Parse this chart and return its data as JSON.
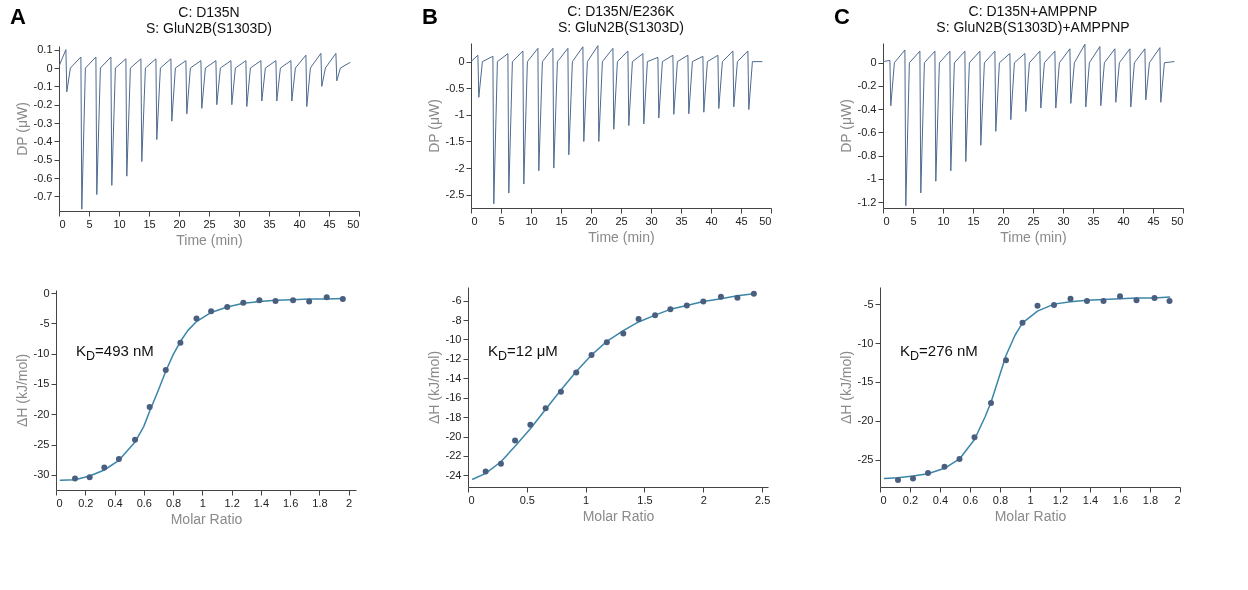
{
  "chart_data": [
    {
      "type": "line",
      "title": "C: D135N",
      "subtitle": "S: GluN2B(S1303D)",
      "annotations": [
        "A"
      ],
      "xlabel": "Time (min)",
      "ylabel": "DP (μW)",
      "xlim": [
        0,
        50
      ],
      "xticks": [
        0,
        5,
        10,
        15,
        20,
        25,
        30,
        35,
        40,
        45,
        50
      ],
      "ylim": [
        -0.78,
        0.12
      ],
      "yticks": [
        0.1,
        0,
        -0.1,
        -0.2,
        -0.3,
        -0.4,
        -0.5,
        -0.6,
        -0.7
      ],
      "grid": false,
      "x": [
        0,
        1.15,
        1.3,
        1.9,
        3.65,
        3.8,
        4.4,
        6.15,
        6.3,
        6.9,
        8.65,
        8.8,
        9.4,
        11.15,
        11.3,
        11.9,
        13.65,
        13.8,
        14.4,
        16.15,
        16.3,
        16.9,
        18.65,
        18.8,
        19.4,
        21.15,
        21.3,
        21.9,
        23.65,
        23.8,
        24.4,
        26.15,
        26.3,
        26.9,
        28.65,
        28.8,
        29.4,
        31.15,
        31.3,
        31.9,
        33.65,
        33.8,
        34.4,
        36.15,
        36.3,
        36.9,
        38.65,
        38.8,
        39.4,
        41.15,
        41.3,
        41.9,
        43.65,
        43.8,
        44.4,
        46.15,
        46.3,
        46.9,
        48.5
      ],
      "series": [
        {
          "color": "#4e6a8f",
          "values": [
            0.01,
            0.1,
            -0.13,
            0,
            0.06,
            -0.77,
            0,
            0.06,
            -0.69,
            0,
            0.06,
            -0.64,
            0,
            0.05,
            -0.59,
            0,
            0.05,
            -0.51,
            0,
            0.05,
            -0.39,
            0,
            0.05,
            -0.29,
            0,
            0.04,
            -0.25,
            0,
            0.04,
            -0.22,
            0,
            0.04,
            -0.2,
            0,
            0.04,
            -0.2,
            0,
            0.04,
            -0.21,
            0,
            0.04,
            -0.18,
            0,
            0.04,
            -0.18,
            0,
            0.04,
            -0.18,
            0,
            0.07,
            -0.21,
            0,
            0.08,
            -0.1,
            0,
            0.08,
            -0.07,
            0,
            0.03
          ]
        }
      ]
    },
    {
      "type": "line",
      "title": "C: D135N/E236K",
      "subtitle": "S: GluN2B(S1303D)",
      "annotations": [
        "B"
      ],
      "xlabel": "Time (min)",
      "ylabel": "DP (μW)",
      "xlim": [
        0,
        50
      ],
      "xticks": [
        0,
        5,
        10,
        15,
        20,
        25,
        30,
        35,
        40,
        45,
        50
      ],
      "ylim": [
        -2.75,
        0.35
      ],
      "yticks": [
        0,
        -0.5,
        -1,
        -1.5,
        -2,
        -2.5
      ],
      "grid": false,
      "x": [
        0,
        1.15,
        1.3,
        1.9,
        3.65,
        3.8,
        4.4,
        6.15,
        6.3,
        6.9,
        8.65,
        8.8,
        9.4,
        11.15,
        11.3,
        11.9,
        13.65,
        13.8,
        14.4,
        16.15,
        16.3,
        16.9,
        18.65,
        18.8,
        19.4,
        21.15,
        21.3,
        21.9,
        23.65,
        23.8,
        24.4,
        26.15,
        26.3,
        26.9,
        28.65,
        28.8,
        29.4,
        31.15,
        31.3,
        31.9,
        33.65,
        33.8,
        34.4,
        36.15,
        36.3,
        36.9,
        38.65,
        38.8,
        39.4,
        41.15,
        41.3,
        41.9,
        43.65,
        43.8,
        44.4,
        46.15,
        46.3,
        46.9,
        48.5
      ],
      "series": [
        {
          "color": "#4e6a8f",
          "values": [
            0,
            0.12,
            -0.67,
            0,
            0.1,
            -2.67,
            0,
            0.15,
            -2.47,
            0,
            0.2,
            -2.3,
            0,
            0.25,
            -2.05,
            0,
            0.25,
            -2.0,
            0,
            0.25,
            -1.75,
            0,
            0.28,
            -1.5,
            0,
            0.3,
            -1.5,
            0,
            0.25,
            -1.27,
            0,
            0.2,
            -1.2,
            0,
            0.15,
            -1.17,
            0,
            0.08,
            -1.06,
            0,
            0.12,
            -0.99,
            0,
            0.12,
            -0.98,
            0,
            0.1,
            -0.95,
            0,
            0.12,
            -0.88,
            0,
            0.2,
            -0.85,
            0,
            0.2,
            -0.9,
            0,
            0
          ]
        }
      ]
    },
    {
      "type": "line",
      "title": "C: D135N+AMPPNP",
      "subtitle": "S: GluN2B(S1303D)+AMPPNP",
      "annotations": [
        "C"
      ],
      "xlabel": "Time (min)",
      "ylabel": "DP (μW)",
      "xlim": [
        0,
        50
      ],
      "xticks": [
        0,
        5,
        10,
        15,
        20,
        25,
        30,
        35,
        40,
        45,
        50
      ],
      "ylim": [
        -1.25,
        0.17
      ],
      "yticks": [
        0,
        -0.2,
        -0.4,
        -0.6,
        -0.8,
        -1,
        -1.2
      ],
      "grid": false,
      "x": [
        0,
        1.15,
        1.3,
        1.9,
        3.65,
        3.8,
        4.4,
        6.15,
        6.3,
        6.9,
        8.65,
        8.8,
        9.4,
        11.15,
        11.3,
        11.9,
        13.65,
        13.8,
        14.4,
        16.15,
        16.3,
        16.9,
        18.65,
        18.8,
        19.4,
        21.15,
        21.3,
        21.9,
        23.65,
        23.8,
        24.4,
        26.15,
        26.3,
        26.9,
        28.65,
        28.8,
        29.4,
        31.15,
        31.3,
        31.9,
        33.65,
        33.8,
        34.4,
        36.15,
        36.3,
        36.9,
        38.65,
        38.8,
        39.4,
        41.15,
        41.3,
        41.9,
        43.65,
        43.8,
        44.4,
        46.15,
        46.3,
        46.9,
        48.5
      ],
      "series": [
        {
          "color": "#4e6a8f",
          "values": [
            0.01,
            0.02,
            -0.37,
            0,
            0.11,
            -1.23,
            0,
            0.1,
            -1.12,
            0,
            0.1,
            -1.02,
            0,
            0.1,
            -0.93,
            0,
            0.1,
            -0.85,
            0,
            0.1,
            -0.71,
            0,
            0.1,
            -0.59,
            0,
            0.08,
            -0.49,
            0,
            0.08,
            -0.42,
            0,
            0.1,
            -0.39,
            0,
            0.1,
            -0.39,
            0,
            0.12,
            -0.35,
            0,
            0.16,
            -0.38,
            0,
            0.14,
            -0.37,
            0,
            0.12,
            -0.34,
            0,
            0.12,
            -0.38,
            0,
            0.12,
            -0.32,
            0,
            0.13,
            -0.34,
            0,
            0.01
          ]
        }
      ]
    },
    {
      "type": "scatter",
      "annotations": [
        "K$_{D}$=493 nM"
      ],
      "xlabel": "Molar Ratio",
      "ylabel": "ΔH (kJ/mol)",
      "xlim": [
        0,
        2.05
      ],
      "xticks": [
        0,
        0.2,
        0.4,
        0.6,
        0.8,
        1,
        1.2,
        1.4,
        1.6,
        1.8,
        2
      ],
      "ylim": [
        -32.5,
        0.5
      ],
      "yticks": [
        0,
        -5,
        -10,
        -15,
        -20,
        -25,
        -30
      ],
      "grid": false,
      "series": [
        {
          "type": "line",
          "marker": "none",
          "color": "#3a86a8",
          "x": [
            0.03,
            0.13,
            0.23,
            0.33,
            0.43,
            0.54,
            0.6,
            0.64,
            0.7,
            0.75,
            0.8,
            0.85,
            0.9,
            0.96,
            1.06,
            1.17,
            1.28,
            1.39,
            1.5,
            1.62,
            1.73,
            1.85,
            1.96
          ],
          "values": [
            -30.9,
            -30.8,
            -30.2,
            -29.2,
            -27.6,
            -24.6,
            -22,
            -19.5,
            -16,
            -12.9,
            -10.2,
            -8.0,
            -6.2,
            -4.7,
            -3.2,
            -2.3,
            -1.7,
            -1.4,
            -1.2,
            -1.1,
            -1.0,
            -1.0,
            -0.9
          ]
        },
        {
          "type": "scatter",
          "marker": "circle",
          "color": "#4a5f80",
          "x": [
            0.13,
            0.23,
            0.33,
            0.43,
            0.54,
            0.64,
            0.75,
            0.85,
            0.96,
            1.06,
            1.17,
            1.28,
            1.39,
            1.5,
            1.62,
            1.73,
            1.85,
            1.96
          ],
          "values": [
            -30.6,
            -30.4,
            -28.8,
            -27.4,
            -24.2,
            -18.8,
            -12.7,
            -8.2,
            -4.2,
            -3.0,
            -2.3,
            -1.6,
            -1.2,
            -1.3,
            -1.2,
            -1.4,
            -0.7,
            -1.0
          ]
        }
      ]
    },
    {
      "type": "scatter",
      "annotations": [
        "K$_{D}$=12 μM"
      ],
      "xlabel": "Molar Ratio",
      "ylabel": "ΔH (kJ/mol)",
      "xlim": [
        0,
        2.55
      ],
      "xticks": [
        0,
        0.5,
        1,
        1.5,
        2,
        2.5
      ],
      "ylim": [
        -25.2,
        -4.6
      ],
      "yticks": [
        -6,
        -8,
        -10,
        -12,
        -14,
        -16,
        -18,
        -20,
        -22,
        -24
      ],
      "grid": false,
      "series": [
        {
          "type": "line",
          "marker": "none",
          "color": "#3a86a8",
          "x": [
            0.04,
            0.15,
            0.28,
            0.4,
            0.53,
            0.66,
            0.79,
            0.92,
            1.05,
            1.18,
            1.32,
            1.45,
            1.59,
            1.72,
            1.86,
            2.0,
            2.15,
            2.29,
            2.43
          ],
          "values": [
            -24.4,
            -23.8,
            -22.6,
            -21.0,
            -19.2,
            -17.2,
            -15.2,
            -13.3,
            -11.6,
            -10.2,
            -9.1,
            -8.2,
            -7.5,
            -6.9,
            -6.5,
            -6.1,
            -5.8,
            -5.5,
            -5.3
          ]
        },
        {
          "type": "scatter",
          "marker": "circle",
          "color": "#4a5f80",
          "x": [
            0.15,
            0.28,
            0.4,
            0.53,
            0.66,
            0.79,
            0.92,
            1.05,
            1.18,
            1.32,
            1.45,
            1.59,
            1.72,
            1.86,
            2.0,
            2.15,
            2.29,
            2.43
          ],
          "values": [
            -23.6,
            -22.8,
            -20.4,
            -18.8,
            -17.1,
            -15.4,
            -13.4,
            -11.6,
            -10.3,
            -9.4,
            -7.9,
            -7.5,
            -6.9,
            -6.5,
            -6.1,
            -5.6,
            -5.7,
            -5.3
          ]
        }
      ]
    },
    {
      "type": "scatter",
      "annotations": [
        "K$_{D}$=276 nM"
      ],
      "xlabel": "Molar Ratio",
      "ylabel": "ΔH (kJ/mol)",
      "xlim": [
        0,
        2
      ],
      "xticks": [
        0,
        0.2,
        0.4,
        0.6,
        0.8,
        1,
        1.2,
        1.4,
        1.6,
        1.8,
        2
      ],
      "ylim": [
        -28.5,
        -2.8
      ],
      "yticks": [
        -5,
        -10,
        -15,
        -20,
        -25
      ],
      "grid": false,
      "series": [
        {
          "type": "line",
          "marker": "none",
          "color": "#3a86a8",
          "x": [
            0.03,
            0.12,
            0.22,
            0.32,
            0.43,
            0.53,
            0.63,
            0.7,
            0.74,
            0.8,
            0.84,
            0.9,
            0.95,
            1.05,
            1.16,
            1.27,
            1.38,
            1.49,
            1.6,
            1.71,
            1.83,
            1.93
          ],
          "values": [
            -27.4,
            -27.3,
            -27.1,
            -26.8,
            -26.1,
            -24.9,
            -22.4,
            -19.5,
            -17.6,
            -14,
            -11.6,
            -9.0,
            -7.4,
            -5.9,
            -5.0,
            -4.7,
            -4.5,
            -4.4,
            -4.3,
            -4.2,
            -4.2,
            -4.1
          ]
        },
        {
          "type": "scatter",
          "marker": "circle",
          "color": "#4a5f80",
          "x": [
            0.12,
            0.22,
            0.32,
            0.43,
            0.53,
            0.63,
            0.74,
            0.84,
            0.95,
            1.05,
            1.16,
            1.27,
            1.38,
            1.49,
            1.6,
            1.71,
            1.83,
            1.93
          ],
          "values": [
            -27.6,
            -27.4,
            -26.7,
            -25.9,
            -24.9,
            -22.1,
            -17.7,
            -12.2,
            -7.4,
            -5.2,
            -5.1,
            -4.3,
            -4.6,
            -4.6,
            -4.0,
            -4.5,
            -4.2,
            -4.6
          ]
        }
      ]
    }
  ]
}
